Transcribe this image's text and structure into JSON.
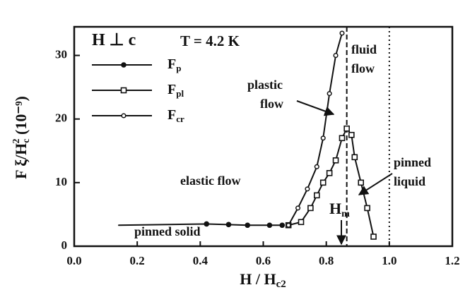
{
  "chart_data": {
    "type": "line",
    "xlabel": {
      "text": "H / H",
      "sub": "c2"
    },
    "ylabel": {
      "text": "F ξ/H",
      "sub": "c",
      "sup": "2",
      "tail": " (10⁻⁹)"
    },
    "xlim": [
      0,
      1.2
    ],
    "ylim": [
      0,
      34.5
    ],
    "xticks": [
      {
        "value": 0,
        "label": "0.0"
      },
      0.2,
      0.4,
      0.6,
      0.8,
      {
        "value": 1,
        "label": "1.0"
      },
      1.2
    ],
    "yticks": [
      0,
      10,
      20,
      30
    ],
    "reference_lines": [
      {
        "x": 0.865,
        "style": "dashed"
      },
      {
        "x": 1,
        "style": "dotted"
      }
    ],
    "series": [
      {
        "name": "F",
        "sub": "p",
        "marker": "filled-circle",
        "color": "#111",
        "x": [
          0.14,
          0.42,
          0.49,
          0.55,
          0.62,
          0.66
        ],
        "values": [
          3.3,
          3.5,
          3.4,
          3.3,
          3.3,
          3.3
        ]
      },
      {
        "name": "F",
        "sub": "pl",
        "marker": "square",
        "color": "#111",
        "x": [
          0.68,
          0.72,
          0.75,
          0.77,
          0.79,
          0.81,
          0.83,
          0.85,
          0.865,
          0.88,
          0.89,
          0.91,
          0.93,
          0.95
        ],
        "values": [
          3.3,
          3.8,
          6,
          8,
          10,
          11.5,
          13.5,
          17,
          18.5,
          17.5,
          14,
          10,
          6,
          1.5
        ]
      },
      {
        "name": "F",
        "sub": "cr",
        "marker": "small-circle",
        "color": "#111",
        "x": [
          0.68,
          0.71,
          0.74,
          0.77,
          0.79,
          0.81,
          0.83,
          0.85
        ],
        "values": [
          3.3,
          6,
          9,
          12.5,
          17,
          24,
          30,
          33.5
        ]
      }
    ],
    "annotations": [
      {
        "lines": [
          "H ⊥ c"
        ]
      },
      {
        "lines": [
          "T = 4.2 K"
        ]
      },
      {
        "lines": [
          "fluid",
          "flow"
        ]
      },
      {
        "lines": [
          "plastic",
          "flow"
        ]
      },
      {
        "lines": [
          "elastic flow"
        ]
      },
      {
        "lines": [
          "pinned",
          "liquid"
        ]
      },
      {
        "lines": [
          "pinned solid"
        ]
      },
      {
        "lines": [
          "H"
        ],
        "sub": "m"
      }
    ]
  }
}
